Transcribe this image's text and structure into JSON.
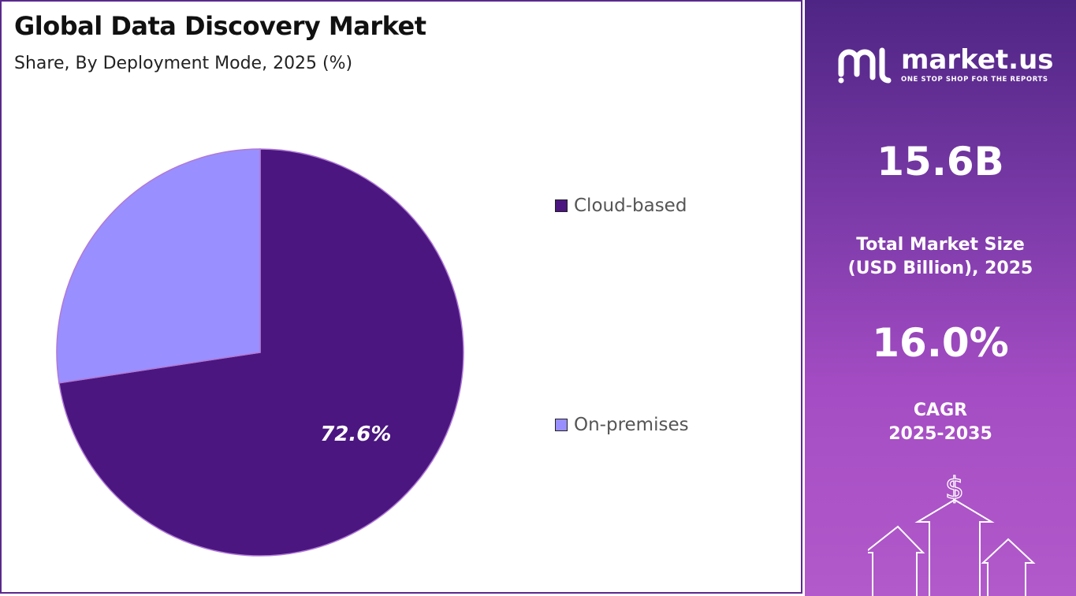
{
  "chart": {
    "title": "Global Data Discovery Market",
    "subtitle": "Share, By Deployment Mode, 2025 (%)"
  },
  "chart_data": {
    "type": "pie",
    "title": "Global Data Discovery Market",
    "subtitle": "Share, By Deployment Mode, 2025 (%)",
    "categories": [
      "Cloud-based",
      "On-premises"
    ],
    "values": [
      72.6,
      27.4
    ],
    "data_labels": [
      "72.6%",
      ""
    ],
    "colors": [
      "#4b1680",
      "#9a8fff"
    ],
    "legend_position": "right"
  },
  "sidebar": {
    "brand_name": "market.us",
    "brand_tagline": "ONE STOP SHOP FOR THE REPORTS",
    "market_size_value": "15.6B",
    "market_size_label_1": "Total Market Size",
    "market_size_label_2": "(USD Billion), 2025",
    "cagr_value": "16.0%",
    "cagr_label_1": "CAGR",
    "cagr_label_2": "2025-2035",
    "currency_symbol": "$"
  },
  "colors": {
    "panel_border": "#5a2a8c",
    "sidebar_top": "#4e2584",
    "sidebar_bottom": "#b25acb"
  }
}
